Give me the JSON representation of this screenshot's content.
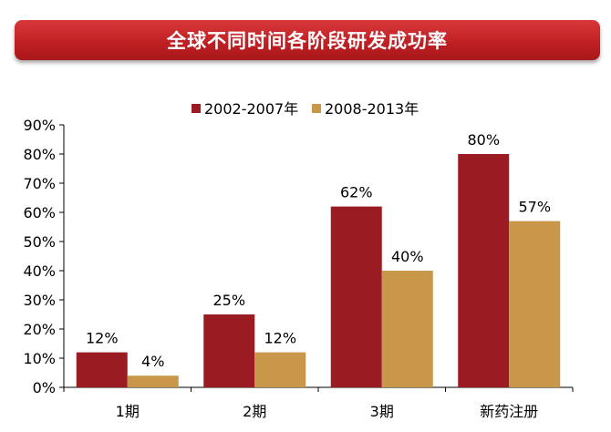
{
  "banner": {
    "title": "全球不同时间各阶段研发成功率"
  },
  "chart_data": {
    "type": "bar",
    "title": "全球不同时间各阶段研发成功率",
    "categories": [
      "1期",
      "2期",
      "3期",
      "新药注册"
    ],
    "series": [
      {
        "name": "2002-2007年",
        "color": "#9b1b22",
        "values": [
          12,
          25,
          62,
          80
        ]
      },
      {
        "name": "2008-2013年",
        "color": "#c9974a",
        "values": [
          4,
          12,
          40,
          57
        ]
      }
    ],
    "value_suffix": "%",
    "ylim": [
      0,
      90
    ],
    "yticks": [
      "0%",
      "10%",
      "20%",
      "30%",
      "40%",
      "50%",
      "60%",
      "70%",
      "80%",
      "90%"
    ],
    "xlabel": "",
    "ylabel": "",
    "legend": "top-center",
    "grid": false
  }
}
